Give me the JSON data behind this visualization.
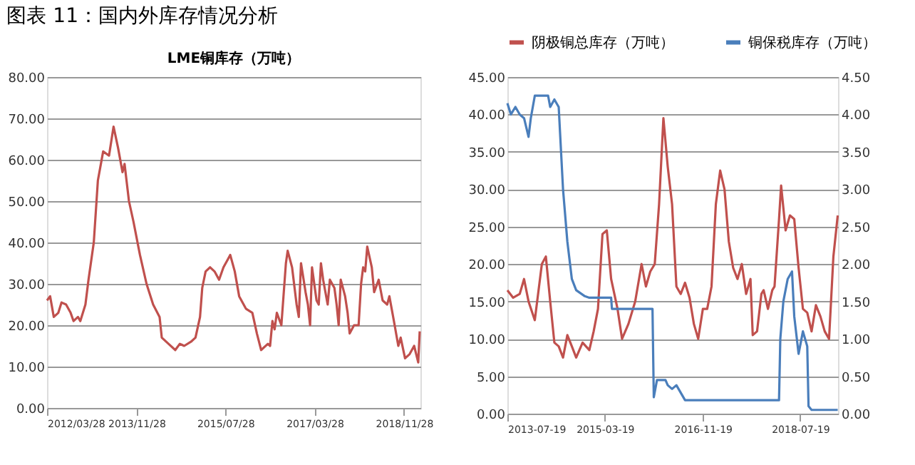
{
  "chart_data": [
    {
      "type": "line",
      "title": "LME铜库存（万吨）",
      "annotations": [
        "图表 11：国内外库存情况分析"
      ],
      "grid": "y",
      "xlim": [
        "2012-03-28",
        "2019-03-20"
      ],
      "xticks": [
        {
          "value": "2012-03-28",
          "label": "2012/03/28"
        },
        {
          "value": "2013-11-28",
          "label": "2013/11/28"
        },
        {
          "value": "2015-07-28",
          "label": "2015/07/28"
        },
        {
          "value": "2017-03-28",
          "label": "2017/03/28"
        },
        {
          "value": "2018-11-28",
          "label": "2018/11/28"
        }
      ],
      "ylim": [
        0,
        80
      ],
      "yticks": [
        {
          "value": 0,
          "label": "0.00"
        },
        {
          "value": 10,
          "label": "10.00"
        },
        {
          "value": 20,
          "label": "20.00"
        },
        {
          "value": 30,
          "label": "30.00"
        },
        {
          "value": 40,
          "label": "40.00"
        },
        {
          "value": 50,
          "label": "50.00"
        },
        {
          "value": 60,
          "label": "60.00"
        },
        {
          "value": 70,
          "label": "70.00"
        },
        {
          "value": 80,
          "label": "80.00"
        }
      ],
      "x": [
        "2012-03-28",
        "2012-04-18",
        "2012-05-13",
        "2012-06-13",
        "2012-07-05",
        "2012-08-05",
        "2012-09-05",
        "2012-09-25",
        "2012-10-25",
        "2012-11-10",
        "2012-12-15",
        "2013-01-05",
        "2013-02-10",
        "2013-03-10",
        "2013-04-15",
        "2013-05-25",
        "2013-06-25",
        "2013-07-25",
        "2013-08-25",
        "2013-09-08",
        "2013-10-08",
        "2013-11-08",
        "2013-12-22",
        "2014-02-05",
        "2014-03-22",
        "2014-05-05",
        "2014-05-20",
        "2014-07-05",
        "2014-08-20",
        "2014-09-20",
        "2014-10-20",
        "2014-12-05",
        "2015-01-05",
        "2015-02-05",
        "2015-02-20",
        "2015-03-15",
        "2015-04-15",
        "2015-05-15",
        "2015-06-15",
        "2015-07-15",
        "2015-08-15",
        "2015-08-30",
        "2015-09-30",
        "2015-10-30",
        "2015-12-15",
        "2016-01-28",
        "2016-02-28",
        "2016-03-28",
        "2016-05-13",
        "2016-05-28",
        "2016-06-13",
        "2016-06-28",
        "2016-07-13",
        "2016-08-13",
        "2016-09-13",
        "2016-09-25",
        "2016-10-25",
        "2016-11-25",
        "2016-12-10",
        "2016-12-25",
        "2017-01-25",
        "2017-02-10",
        "2017-02-25",
        "2017-03-10",
        "2017-04-10",
        "2017-04-25",
        "2017-05-10",
        "2017-05-25",
        "2017-06-25",
        "2017-07-10",
        "2017-08-10",
        "2017-08-25",
        "2017-09-08",
        "2017-09-22",
        "2017-10-22",
        "2017-11-08",
        "2017-11-22",
        "2017-12-22",
        "2018-01-22",
        "2018-02-08",
        "2018-02-22",
        "2018-03-08",
        "2018-03-22",
        "2018-04-22",
        "2018-05-08",
        "2018-06-08",
        "2018-07-05",
        "2018-08-05",
        "2018-08-20",
        "2018-09-20",
        "2018-10-20",
        "2018-11-05",
        "2018-12-05",
        "2019-01-05",
        "2019-02-05",
        "2019-03-05",
        "2019-03-15"
      ],
      "series": [
        {
          "color": "#c0504d",
          "values": [
            26,
            27,
            22,
            23,
            25.5,
            25,
            23,
            21,
            22,
            21,
            25,
            31,
            40,
            55,
            62,
            61,
            68,
            63,
            57,
            59,
            50,
            45,
            37,
            30,
            25,
            22,
            17,
            15.5,
            14,
            15.5,
            15,
            16,
            17,
            22,
            29,
            33,
            34,
            33,
            31,
            34,
            36,
            37,
            33,
            27,
            24,
            23,
            18,
            14,
            15.5,
            15,
            21,
            19,
            23,
            20,
            35,
            38,
            34,
            25,
            22,
            35,
            28,
            25,
            20,
            34,
            26,
            25,
            35,
            31,
            25,
            31,
            29,
            25,
            20,
            31,
            27,
            23,
            18,
            20,
            20,
            30,
            34,
            33,
            39,
            34,
            28,
            31,
            26,
            25,
            27,
            21,
            15,
            17,
            12,
            13,
            15,
            11,
            18.5
          ]
        }
      ]
    },
    {
      "type": "line",
      "legend": "top",
      "grid": "y",
      "xlim": [
        "2013-07-19",
        "2019-03-12"
      ],
      "xticks": [
        "2013-07-19",
        "2015-03-19",
        "2016-11-19",
        "2018-07-19"
      ],
      "ylim": [
        0,
        45
      ],
      "yticks": [
        {
          "value": 0,
          "label": "0.00"
        },
        {
          "value": 5,
          "label": "5.00"
        },
        {
          "value": 10,
          "label": "10.00"
        },
        {
          "value": 15,
          "label": "15.00"
        },
        {
          "value": 20,
          "label": "20.00"
        },
        {
          "value": 25,
          "label": "25.00"
        },
        {
          "value": 30,
          "label": "30.00"
        },
        {
          "value": 35,
          "label": "35.00"
        },
        {
          "value": 40,
          "label": "40.00"
        },
        {
          "value": 45,
          "label": "45.00"
        }
      ],
      "y2lim": [
        0,
        4.5
      ],
      "y2ticks": [
        {
          "value": 0,
          "label": "0.00"
        },
        {
          "value": 0.5,
          "label": "0.50"
        },
        {
          "value": 1,
          "label": "1.00"
        },
        {
          "value": 1.5,
          "label": "1.50"
        },
        {
          "value": 2,
          "label": "2.00"
        },
        {
          "value": 2.5,
          "label": "2.50"
        },
        {
          "value": 3,
          "label": "3.00"
        },
        {
          "value": 3.5,
          "label": "3.50"
        },
        {
          "value": 4,
          "label": "4.00"
        },
        {
          "value": 4.5,
          "label": "4.50"
        }
      ],
      "series": [
        {
          "name": "阴极铜总库存（万吨）",
          "color": "#c0504d",
          "x": [
            "2013-07-19",
            "2013-08-24",
            "2013-10-04",
            "2013-10-31",
            "2013-11-28",
            "2014-01-06",
            "2014-02-19",
            "2014-03-16",
            "2014-04-12",
            "2014-05-08",
            "2014-06-04",
            "2014-07-01",
            "2014-07-28",
            "2014-08-25",
            "2014-09-21",
            "2014-10-31",
            "2014-12-12",
            "2015-01-08",
            "2015-02-04",
            "2015-03-04",
            "2015-03-31",
            "2015-04-27",
            "2015-06-06",
            "2015-07-04",
            "2015-08-13",
            "2015-09-24",
            "2015-11-03",
            "2015-11-30",
            "2015-12-27",
            "2016-01-24",
            "2016-02-20",
            "2016-03-18",
            "2016-04-14",
            "2016-05-11",
            "2016-06-07",
            "2016-07-04",
            "2016-07-31",
            "2016-08-28",
            "2016-09-24",
            "2016-10-21",
            "2016-11-19",
            "2016-12-16",
            "2017-01-12",
            "2017-02-08",
            "2017-03-07",
            "2017-04-03",
            "2017-04-30",
            "2017-05-27",
            "2017-06-23",
            "2017-07-20",
            "2017-08-16",
            "2017-09-12",
            "2017-09-26",
            "2017-10-23",
            "2017-11-19",
            "2017-12-03",
            "2017-12-30",
            "2018-01-26",
            "2018-02-09",
            "2018-03-09",
            "2018-03-22",
            "2018-04-19",
            "2018-05-16",
            "2018-06-12",
            "2018-07-09",
            "2018-08-05",
            "2018-09-01",
            "2018-09-28",
            "2018-10-25",
            "2018-11-22",
            "2018-12-19",
            "2019-01-15",
            "2019-02-11",
            "2019-03-10"
          ],
          "values": [
            16.5,
            15.5,
            16,
            18,
            15,
            12.5,
            20,
            21,
            15,
            9.5,
            9,
            7.5,
            10.5,
            9,
            7.5,
            9.5,
            8.5,
            11,
            14,
            24,
            24.5,
            18,
            14,
            10,
            12,
            15,
            20,
            17,
            19,
            20,
            28,
            39.5,
            33,
            28,
            17,
            16,
            17.5,
            15.5,
            12,
            10,
            14,
            14,
            17,
            28,
            32.5,
            30,
            23,
            19.5,
            18,
            20,
            16,
            18,
            10.5,
            11,
            16,
            16.5,
            14,
            16.5,
            17,
            26,
            30.5,
            24.5,
            26.5,
            26,
            19.5,
            14,
            13.5,
            11,
            14.5,
            13,
            11,
            10,
            21,
            26.5
          ]
        },
        {
          "name": "铜保税库存（万吨）",
          "color": "#4a7ebb",
          "axis": "y2",
          "x": [
            "2013-07-19",
            "2013-08-10",
            "2013-09-07",
            "2013-10-04",
            "2013-10-31",
            "2013-11-28",
            "2013-12-12",
            "2014-01-06",
            "2014-03-30",
            "2014-04-12",
            "2014-05-08",
            "2014-06-04",
            "2014-07-01",
            "2014-07-28",
            "2014-08-25",
            "2014-09-21",
            "2014-11-14",
            "2014-12-12",
            "2015-04-27",
            "2015-05-02",
            "2016-01-10",
            "2016-01-18",
            "2016-02-07",
            "2016-03-31",
            "2016-04-14",
            "2016-05-11",
            "2016-06-07",
            "2016-07-04",
            "2016-07-31",
            "2018-03-09",
            "2018-03-17",
            "2018-04-05",
            "2018-05-02",
            "2018-05-29",
            "2018-06-12",
            "2018-07-09",
            "2018-08-05",
            "2018-09-01",
            "2018-09-09",
            "2018-09-28",
            "2019-03-10"
          ],
          "values": [
            4.15,
            4.0,
            4.1,
            4.0,
            3.95,
            3.7,
            3.95,
            4.25,
            4.25,
            4.1,
            4.2,
            4.1,
            3.0,
            2.3,
            1.8,
            1.65,
            1.57,
            1.55,
            1.55,
            1.4,
            1.4,
            0.22,
            0.45,
            0.45,
            0.38,
            0.33,
            0.38,
            0.28,
            0.18,
            0.18,
            1.0,
            1.5,
            1.8,
            1.9,
            1.3,
            0.8,
            1.1,
            0.9,
            0.1,
            0.05,
            0.05
          ]
        }
      ]
    }
  ]
}
